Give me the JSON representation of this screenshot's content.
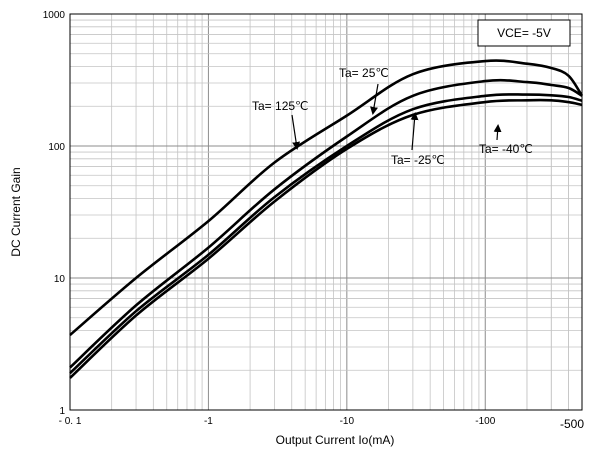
{
  "chart_data": {
    "type": "line",
    "xlabel": "Output Current   Io(mA)",
    "ylabel": "DC Current Gain",
    "x_scale": "log",
    "y_scale": "log",
    "xlim": [
      0.1,
      500
    ],
    "ylim": [
      1,
      1000
    ],
    "grid": true,
    "x_tick_labels": [
      "- 0. 1",
      "-1",
      "-10",
      "-100",
      "-500"
    ],
    "y_tick_labels": [
      "1",
      "10",
      "100",
      "1000"
    ],
    "condition_box": "VCE= -5V",
    "series": [
      {
        "name": "Ta= 125℃",
        "x": [
          0.1,
          0.3,
          1,
          3,
          10,
          30,
          100,
          200,
          300,
          400,
          500
        ],
        "y": [
          3.7,
          10,
          27,
          75,
          170,
          350,
          440,
          420,
          390,
          340,
          240
        ]
      },
      {
        "name": "Ta= 25℃",
        "x": [
          0.1,
          0.3,
          1,
          3,
          10,
          30,
          100,
          200,
          300,
          400,
          500
        ],
        "y": [
          2.1,
          6.2,
          17,
          47,
          118,
          240,
          310,
          305,
          290,
          275,
          240
        ]
      },
      {
        "name": "Ta= -25℃",
        "x": [
          0.1,
          0.3,
          1,
          3,
          10,
          30,
          100,
          200,
          300,
          400,
          500
        ],
        "y": [
          1.9,
          5.6,
          15,
          41,
          100,
          190,
          240,
          245,
          242,
          235,
          220
        ]
      },
      {
        "name": "Ta= -40℃",
        "x": [
          0.1,
          0.3,
          1,
          3,
          10,
          30,
          100,
          200,
          300,
          400,
          500
        ],
        "y": [
          1.75,
          5.2,
          14,
          38,
          95,
          172,
          215,
          222,
          222,
          215,
          205
        ]
      }
    ]
  }
}
